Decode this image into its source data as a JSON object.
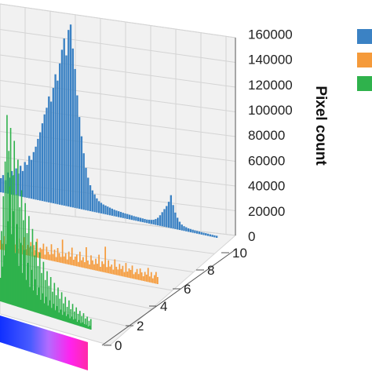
{
  "chart_data": {
    "type": "bar",
    "ylabel": "Pixel count",
    "zlim": [
      0,
      160000
    ],
    "z_ticks": [
      "0",
      "20000",
      "40000",
      "60000",
      "80000",
      "100000",
      "120000",
      "140000",
      "160000"
    ],
    "y_ticks": [
      "0",
      "2",
      "4",
      "6",
      "8",
      "10"
    ],
    "grid": true,
    "legend_position": "top-right",
    "colors": {
      "blue": "#3b82c4",
      "orange": "#f59a3a",
      "green": "#2fb24c",
      "grid": "#d4d4d4",
      "pane": "#f1f1f1"
    },
    "series": [
      {
        "color": "#3b82c4",
        "values": [
          12000,
          15000,
          11000,
          18000,
          14000,
          20000,
          17000,
          23000,
          19000,
          26000,
          22000,
          30000,
          28000,
          36000,
          33000,
          40000,
          45000,
          52000,
          58000,
          66000,
          74000,
          80000,
          90000,
          86000,
          98000,
          110000,
          105000,
          120000,
          132000,
          142000,
          128000,
          150000,
          155000,
          135000,
          118000,
          96000,
          78000,
          62000,
          48000,
          36000,
          28000,
          22000,
          18000,
          15000,
          12000,
          10000,
          9000,
          8000,
          7500,
          7000,
          6500,
          6000,
          5500,
          5200,
          5000,
          4800,
          4500,
          4300,
          4200,
          4000,
          3800,
          3600,
          3500,
          3400,
          3300,
          3200,
          3100,
          3000,
          3200,
          3500,
          4000,
          5000,
          6500,
          9000,
          12000,
          15000,
          18000,
          22000,
          28000,
          20000,
          14000,
          10000,
          7000,
          5000,
          4000,
          3500,
          3000,
          2800,
          2600,
          2400,
          2300,
          2200,
          2100,
          2000,
          2000,
          1900,
          1800,
          1800,
          1700,
          1700
        ]
      },
      {
        "color": "#f59a3a",
        "values": [
          8000,
          5000,
          12000,
          4000,
          9000,
          6000,
          14000,
          5000,
          10000,
          7000,
          11000,
          4000,
          13000,
          6000,
          8000,
          15000,
          5000,
          9000,
          7000,
          12000,
          4000,
          10000,
          6000,
          16000,
          5000,
          9000,
          8000,
          13000,
          4000,
          11000,
          7000,
          5000,
          14000,
          6000,
          10000,
          4000,
          12000,
          8000,
          5000,
          20000,
          6000,
          9000,
          4000,
          11000,
          7000,
          15000,
          5000,
          8000,
          10000,
          4000,
          13000,
          6000,
          9000,
          5000,
          18000,
          7000,
          4000,
          12000,
          8000,
          5000,
          10000,
          6000,
          14000,
          4000,
          9000,
          7000,
          22000,
          5000,
          11000,
          6000,
          8000,
          4000,
          13000,
          7000,
          5000,
          10000,
          6000,
          9000,
          4000,
          12000,
          5000,
          8000,
          7000,
          11000,
          4000,
          6000,
          9000,
          5000,
          10000,
          7000,
          4000,
          8000,
          6000,
          12000,
          5000,
          9000,
          4000,
          7000,
          10000,
          6000
        ]
      },
      {
        "color": "#2fb24c",
        "values": [
          20000,
          60000,
          30000,
          90000,
          40000,
          120000,
          50000,
          160000,
          70000,
          130000,
          100000,
          150000,
          60000,
          110000,
          80000,
          140000,
          45000,
          95000,
          70000,
          125000,
          35000,
          85000,
          55000,
          100000,
          30000,
          75000,
          50000,
          90000,
          25000,
          65000,
          40000,
          80000,
          20000,
          55000,
          35000,
          70000,
          18000,
          48000,
          28000,
          60000,
          15000,
          40000,
          22000,
          52000,
          12000,
          35000,
          18000,
          45000,
          10000,
          30000,
          16000,
          38000,
          9000,
          26000,
          14000,
          34000,
          8000,
          22000,
          12000,
          30000,
          7000,
          20000,
          11000,
          27000,
          6000,
          18000,
          9000,
          24000,
          5000,
          15000,
          8000,
          21000,
          5000,
          13000,
          7000,
          19000,
          4000,
          12000,
          6000,
          17000,
          4000,
          11000,
          5000,
          15000,
          3000,
          10000,
          5000,
          13000,
          3000,
          9000,
          4000,
          12000,
          3000,
          8000,
          3000,
          10000,
          2000,
          7000,
          3000,
          9000
        ]
      }
    ]
  }
}
